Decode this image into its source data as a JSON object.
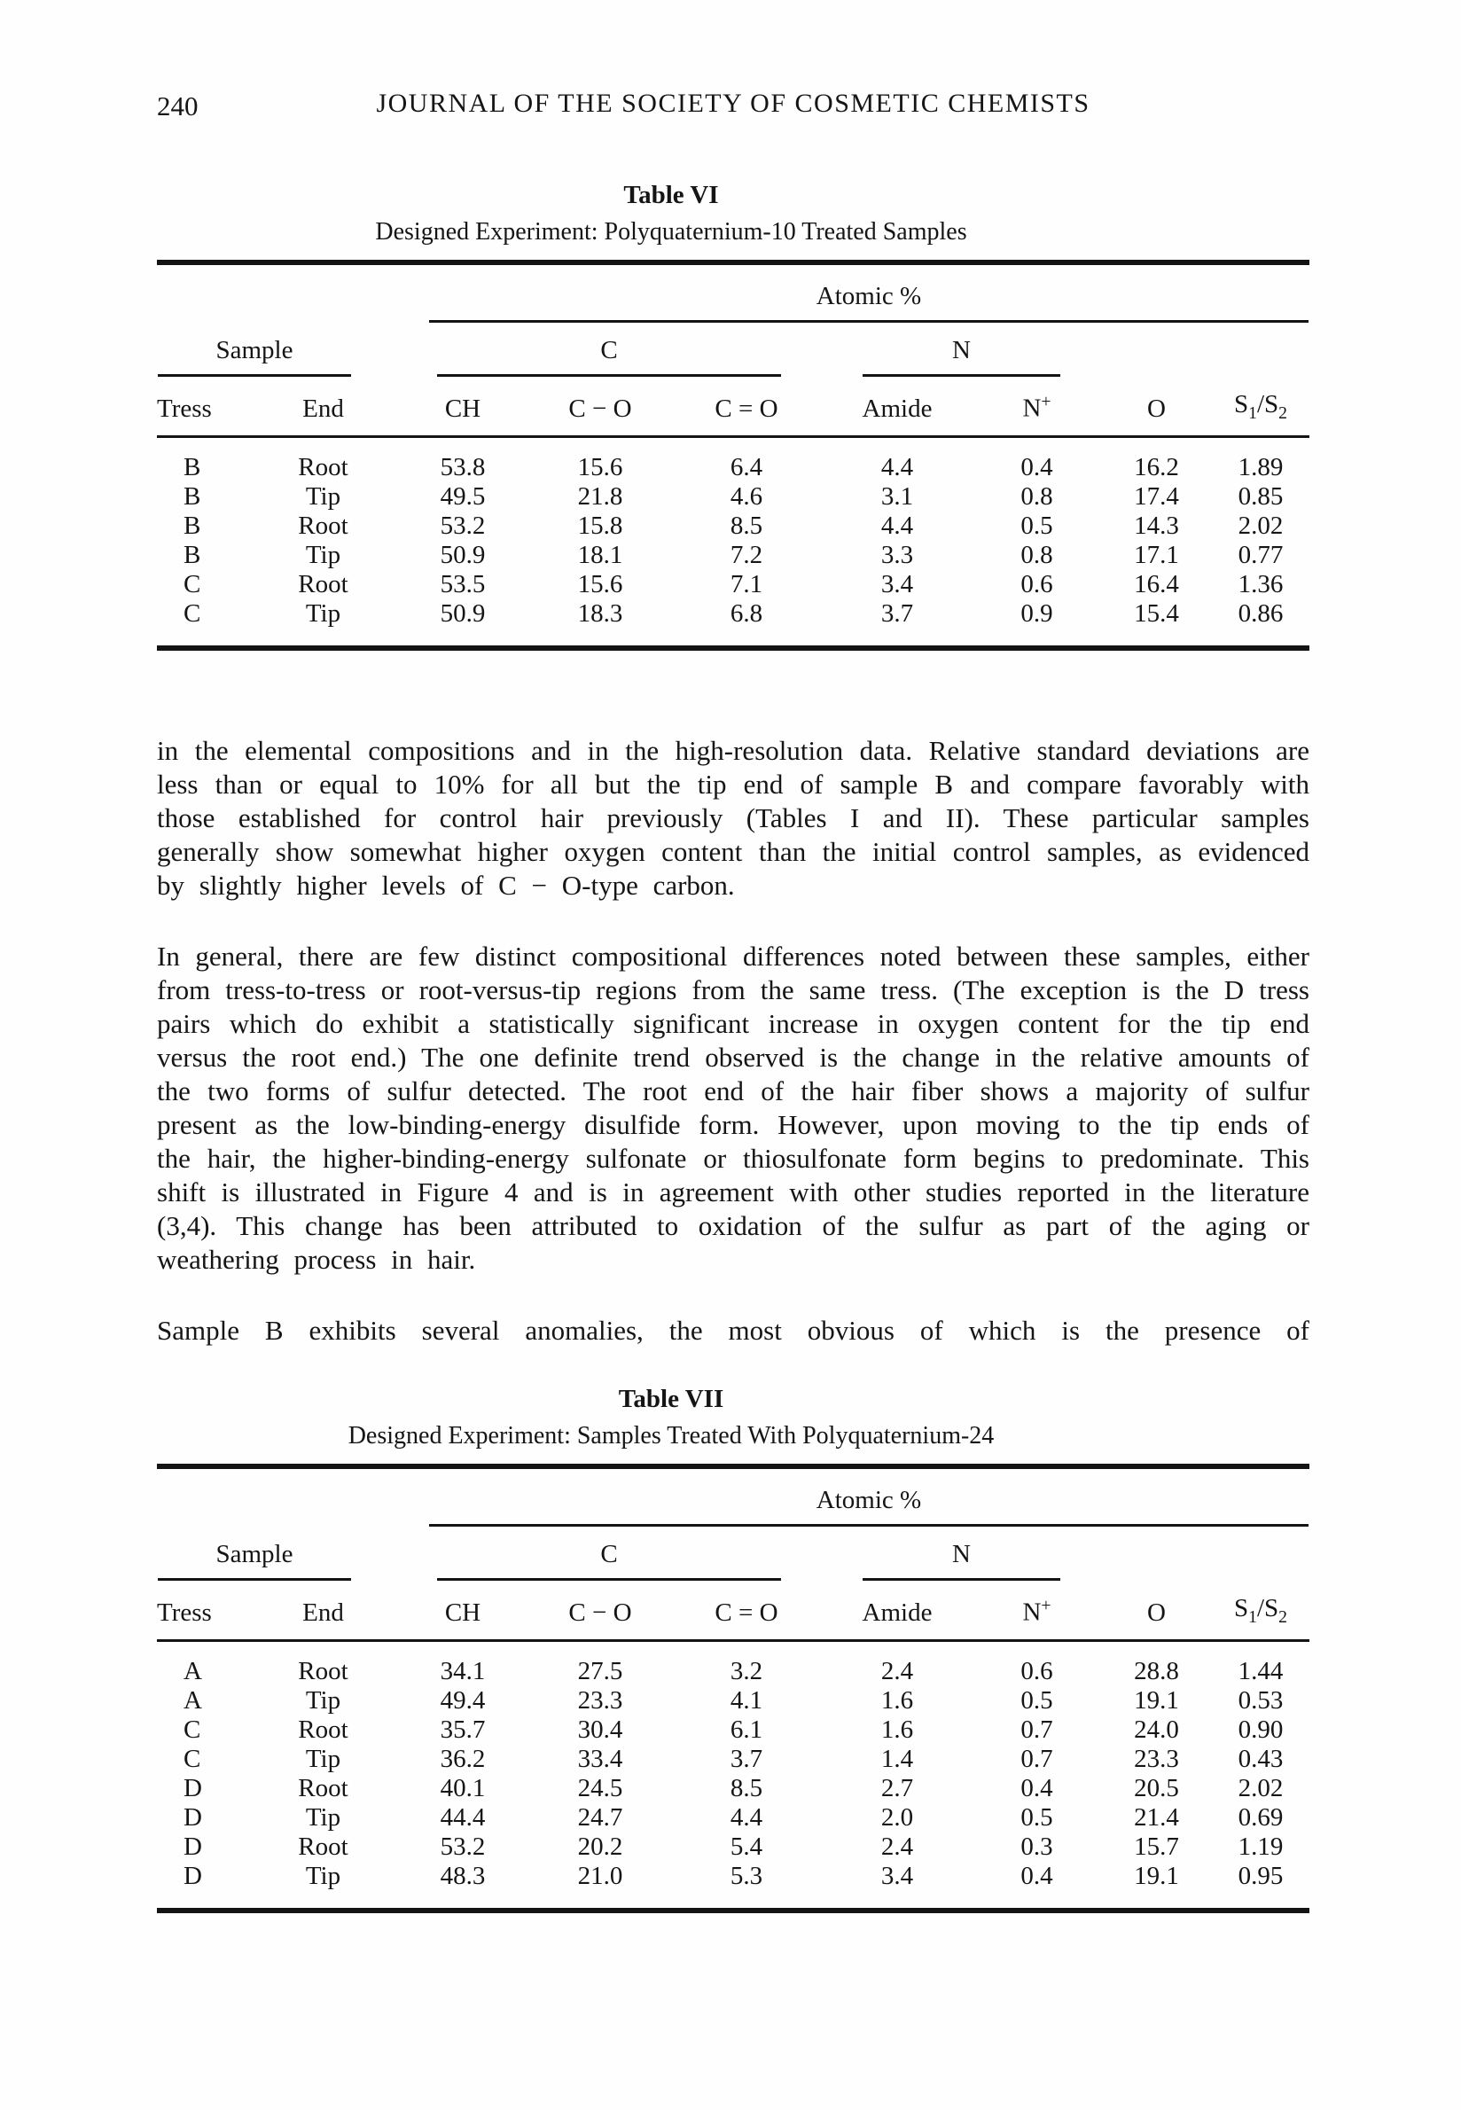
{
  "header": {
    "page_number": "240",
    "journal_title": "JOURNAL OF THE SOCIETY OF COSMETIC CHEMISTS"
  },
  "table_vi": {
    "title": "Table VI",
    "subtitle": "Designed Experiment: Polyquaternium-10 Treated Samples",
    "atomic": "Atomic %",
    "groups": {
      "sample": "Sample",
      "c": "C",
      "n": "N"
    },
    "columns": [
      "Tress",
      "End",
      "CH",
      "C − O",
      "C = O",
      "Amide",
      "N<sup>+</sup>",
      "O",
      "S<sub>1</sub>/S<sub>2</sub>"
    ],
    "rows": [
      [
        "B",
        "Root",
        "53.8",
        "15.6",
        "6.4",
        "4.4",
        "0.4",
        "16.2",
        "1.89"
      ],
      [
        "B",
        "Tip",
        "49.5",
        "21.8",
        "4.6",
        "3.1",
        "0.8",
        "17.4",
        "0.85"
      ],
      [
        "B",
        "Root",
        "53.2",
        "15.8",
        "8.5",
        "4.4",
        "0.5",
        "14.3",
        "2.02"
      ],
      [
        "B",
        "Tip",
        "50.9",
        "18.1",
        "7.2",
        "3.3",
        "0.8",
        "17.1",
        "0.77"
      ],
      [
        "C",
        "Root",
        "53.5",
        "15.6",
        "7.1",
        "3.4",
        "0.6",
        "16.4",
        "1.36"
      ],
      [
        "C",
        "Tip",
        "50.9",
        "18.3",
        "6.8",
        "3.7",
        "0.9",
        "15.4",
        "0.86"
      ]
    ]
  },
  "body": {
    "paragraph_1": "in the elemental compositions and in the high-resolution data. Relative standard deviations are less than or equal to 10% for all but the tip end of sample B and compare favorably with those established for control hair previously (Tables I and II). These particular samples generally show somewhat higher oxygen content than the initial control samples, as evidenced by slightly higher levels of C − O-type carbon.",
    "paragraph_2": "In general, there are few distinct compositional differences noted between these samples, either from tress-to-tress or root-versus-tip regions from the same tress. (The exception is the D tress pairs which do exhibit a statistically significant increase in oxygen content for the tip end versus the root end.) The one definite trend observed is the change in the relative amounts of the two forms of sulfur detected. The root end of the hair fiber shows a majority of sulfur present as the low-binding-energy disulfide form. However, upon moving to the tip ends of the hair, the higher-binding-energy sulfonate or thiosulfonate form begins to predominate. This shift is illustrated in Figure 4 and is in agreement with other studies reported in the literature (3,4). This change has been attributed to oxidation of the sulfur as part of the aging or weathering process in hair.",
    "paragraph_3": "Sample B exhibits several anomalies, the most obvious of which is the presence of"
  },
  "table_vii": {
    "title": "Table VII",
    "subtitle": "Designed Experiment: Samples Treated With Polyquaternium-24",
    "atomic": "Atomic %",
    "groups": {
      "sample": "Sample",
      "c": "C",
      "n": "N"
    },
    "columns": [
      "Tress",
      "End",
      "CH",
      "C − O",
      "C = O",
      "Amide",
      "N<sup>+</sup>",
      "O",
      "S<sub>1</sub>/S<sub>2</sub>"
    ],
    "rows": [
      [
        "A",
        "Root",
        "34.1",
        "27.5",
        "3.2",
        "2.4",
        "0.6",
        "28.8",
        "1.44"
      ],
      [
        "A",
        "Tip",
        "49.4",
        "23.3",
        "4.1",
        "1.6",
        "0.5",
        "19.1",
        "0.53"
      ],
      [
        "C",
        "Root",
        "35.7",
        "30.4",
        "6.1",
        "1.6",
        "0.7",
        "24.0",
        "0.90"
      ],
      [
        "C",
        "Tip",
        "36.2",
        "33.4",
        "3.7",
        "1.4",
        "0.7",
        "23.3",
        "0.43"
      ],
      [
        "D",
        "Root",
        "40.1",
        "24.5",
        "8.5",
        "2.7",
        "0.4",
        "20.5",
        "2.02"
      ],
      [
        "D",
        "Tip",
        "44.4",
        "24.7",
        "4.4",
        "2.0",
        "0.5",
        "21.4",
        "0.69"
      ],
      [
        "D",
        "Root",
        "53.2",
        "20.2",
        "5.4",
        "2.4",
        "0.3",
        "15.7",
        "1.19"
      ],
      [
        "D",
        "Tip",
        "48.3",
        "21.0",
        "5.3",
        "3.4",
        "0.4",
        "19.1",
        "0.95"
      ]
    ]
  }
}
